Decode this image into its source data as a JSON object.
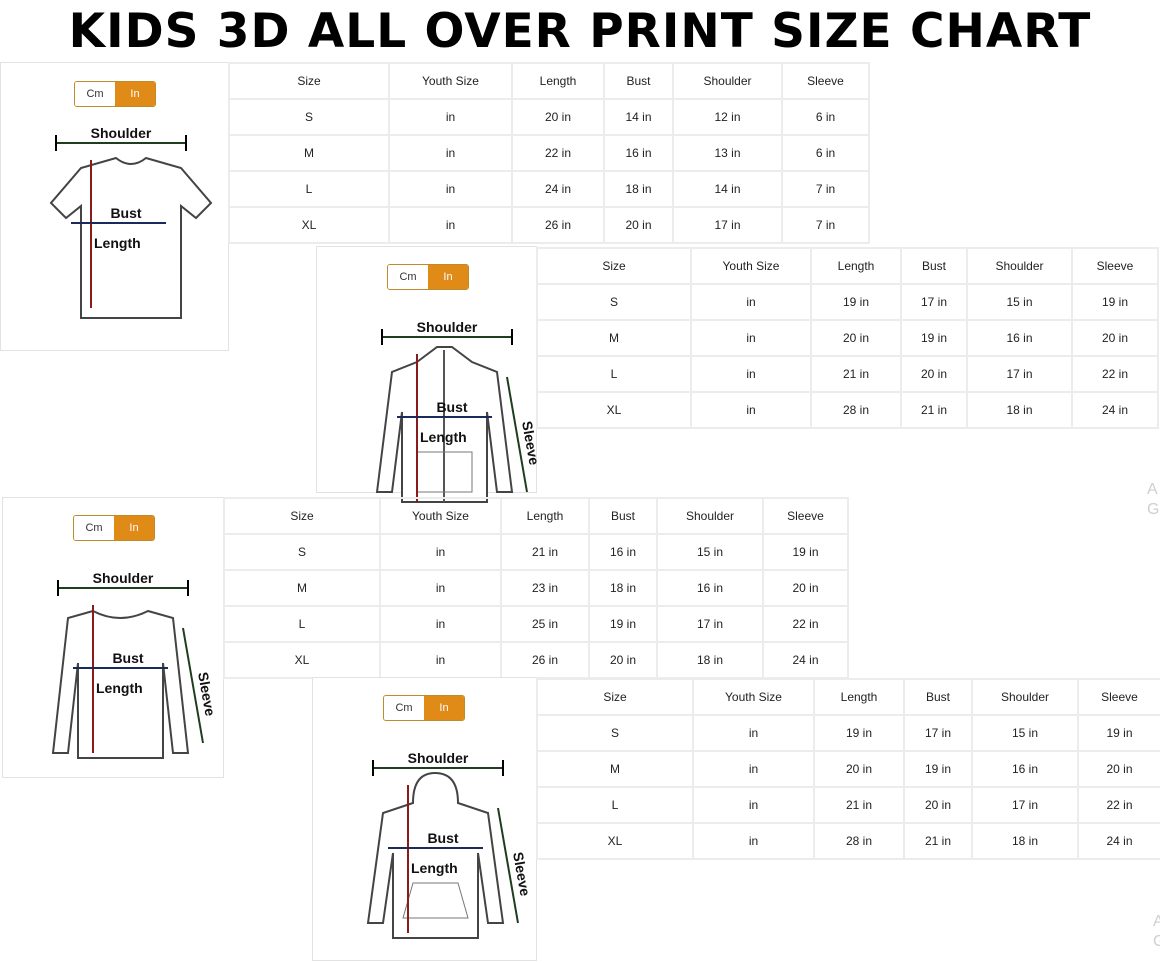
{
  "title": "KIDS 3D ALL OVER PRINT SIZE CHART",
  "colors": {
    "toggle_active": "#e08a17",
    "toggle_border": "#c08a2a",
    "length_arrow": "#8b1a1a",
    "width_arrow": "#1b2a5a",
    "shoulder_arrow": "#1f3d1f"
  },
  "columns": [
    "Size",
    "Youth Size",
    "Length",
    "Bust",
    "Shoulder",
    "Sleeve"
  ],
  "toggle": {
    "cm": "Cm",
    "in": "In",
    "selected": "In"
  },
  "panels": [
    {
      "garment": "t-shirt",
      "labels": {
        "shoulder": "Shoulder",
        "bust": "Bust",
        "length": "Length"
      },
      "rows": [
        [
          "S",
          "in",
          "20 in",
          "14 in",
          "12 in",
          "6 in"
        ],
        [
          "M",
          "in",
          "22 in",
          "16 in",
          "13 in",
          "6 in"
        ],
        [
          "L",
          "in",
          "24 in",
          "18 in",
          "14 in",
          "7 in"
        ],
        [
          "XL",
          "in",
          "26 in",
          "20 in",
          "17 in",
          "7 in"
        ]
      ]
    },
    {
      "garment": "zip-hoodie",
      "labels": {
        "shoulder": "Shoulder",
        "bust": "Bust",
        "length": "Length",
        "sleeve": "Sleeve"
      },
      "rows": [
        [
          "S",
          "in",
          "19 in",
          "17 in",
          "15 in",
          "19 in"
        ],
        [
          "M",
          "in",
          "20 in",
          "19 in",
          "16 in",
          "20 in"
        ],
        [
          "L",
          "in",
          "21 in",
          "20 in",
          "17 in",
          "22 in"
        ],
        [
          "XL",
          "in",
          "28 in",
          "21 in",
          "18 in",
          "24 in"
        ]
      ]
    },
    {
      "garment": "long-sleeve-shirt",
      "labels": {
        "shoulder": "Shoulder",
        "bust": "Bust",
        "length": "Length",
        "sleeve": "Sleeve"
      },
      "rows": [
        [
          "S",
          "in",
          "21 in",
          "16 in",
          "15 in",
          "19 in"
        ],
        [
          "M",
          "in",
          "23 in",
          "18 in",
          "16 in",
          "20 in"
        ],
        [
          "L",
          "in",
          "25 in",
          "19 in",
          "17 in",
          "22 in"
        ],
        [
          "XL",
          "in",
          "26 in",
          "20 in",
          "18 in",
          "24 in"
        ]
      ]
    },
    {
      "garment": "pullover-hoodie",
      "labels": {
        "shoulder": "Shoulder",
        "bust": "Bust",
        "length": "Length",
        "sleeve": "Sleeve"
      },
      "rows": [
        [
          "S",
          "in",
          "19 in",
          "17 in",
          "15 in",
          "19 in"
        ],
        [
          "M",
          "in",
          "20 in",
          "19 in",
          "16 in",
          "20 in"
        ],
        [
          "L",
          "in",
          "21 in",
          "20 in",
          "17 in",
          "22 in"
        ],
        [
          "XL",
          "in",
          "28 in",
          "21 in",
          "18 in",
          "24 in"
        ]
      ]
    }
  ],
  "watermark": {
    "line1": "A",
    "line2": "Go"
  }
}
